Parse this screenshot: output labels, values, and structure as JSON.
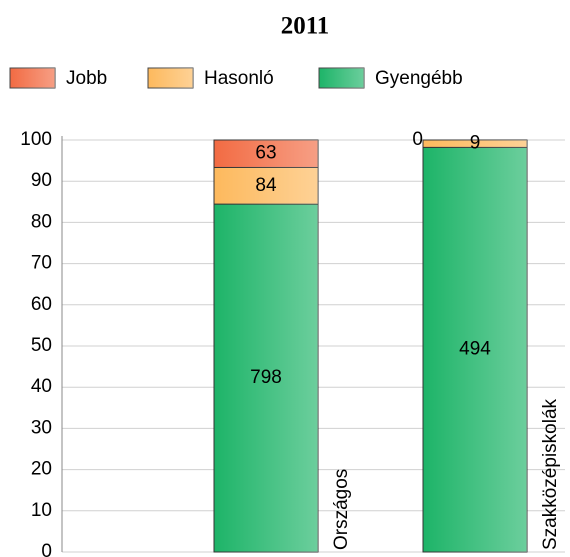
{
  "chart_data": {
    "type": "stacked-bar",
    "stack": "percent",
    "title": "2011",
    "categories": [
      "Országos",
      "Szakközépiskolák"
    ],
    "series": [
      {
        "name": "Gyengébb",
        "color": "#1db468",
        "values": [
          798,
          494
        ]
      },
      {
        "name": "Hasonló",
        "color": "#fdb95d",
        "values": [
          84,
          9
        ]
      },
      {
        "name": "Jobb",
        "color": "#f26b43",
        "values": [
          63,
          0
        ]
      }
    ],
    "legend_order": [
      "Jobb",
      "Hasonló",
      "Gyengébb"
    ],
    "ylim": [
      0,
      100
    ],
    "yticks": [
      0,
      10,
      20,
      30,
      40,
      50,
      60,
      70,
      80,
      90,
      100
    ],
    "grid": true
  }
}
